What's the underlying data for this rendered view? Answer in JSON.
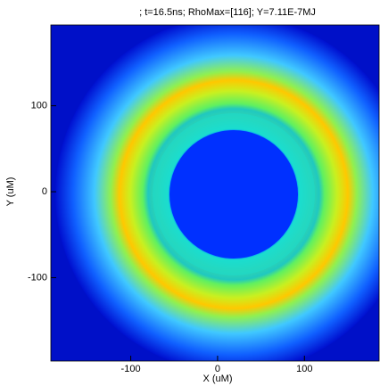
{
  "chart_data": {
    "type": "heatmap",
    "title": "; t=16.5ns; RhoMax=[116]; Y=7.11E-7MJ",
    "x_label": "X (uM)",
    "y_label": "Y (uM)",
    "xlim": [
      -192,
      186
    ],
    "ylim": [
      -197,
      194
    ],
    "xticks": [
      -100,
      0,
      100
    ],
    "yticks": [
      -100,
      0,
      100
    ]
  }
}
